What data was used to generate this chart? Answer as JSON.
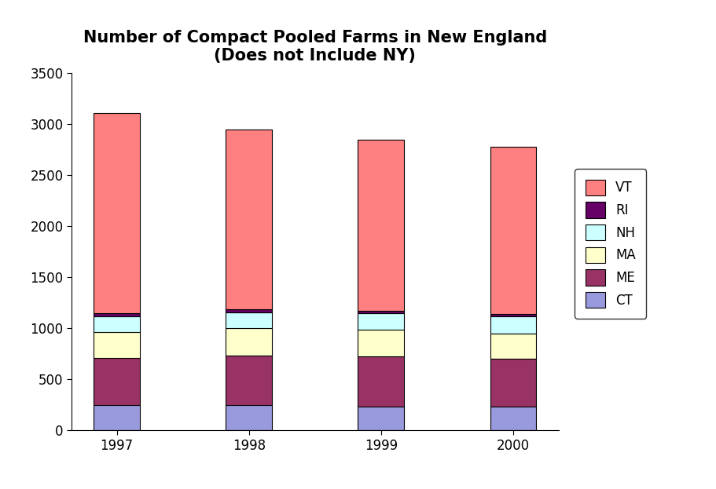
{
  "years": [
    "1997",
    "1998",
    "1999",
    "2000"
  ],
  "categories": [
    "CT",
    "ME",
    "MA",
    "NH",
    "RI",
    "VT"
  ],
  "colors": [
    "#9999dd",
    "#993366",
    "#ffffcc",
    "#ccffff",
    "#660066",
    "#ff8080"
  ],
  "values": {
    "CT": [
      250,
      245,
      235,
      230
    ],
    "ME": [
      460,
      490,
      490,
      470
    ],
    "MA": [
      255,
      265,
      265,
      245
    ],
    "NH": [
      150,
      155,
      160,
      170
    ],
    "RI": [
      30,
      30,
      25,
      25
    ],
    "VT": [
      1965,
      1765,
      1675,
      1640
    ]
  },
  "title_line1": "Number of Compact Pooled Farms in New England",
  "title_line2": "(Does not Include NY)",
  "ylim": [
    0,
    3500
  ],
  "yticks": [
    0,
    500,
    1000,
    1500,
    2000,
    2500,
    3000,
    3500
  ],
  "bar_width": 0.35,
  "title_fontsize": 15,
  "tick_fontsize": 12,
  "legend_fontsize": 12,
  "legend_order": [
    "VT",
    "RI",
    "NH",
    "MA",
    "ME",
    "CT"
  ]
}
